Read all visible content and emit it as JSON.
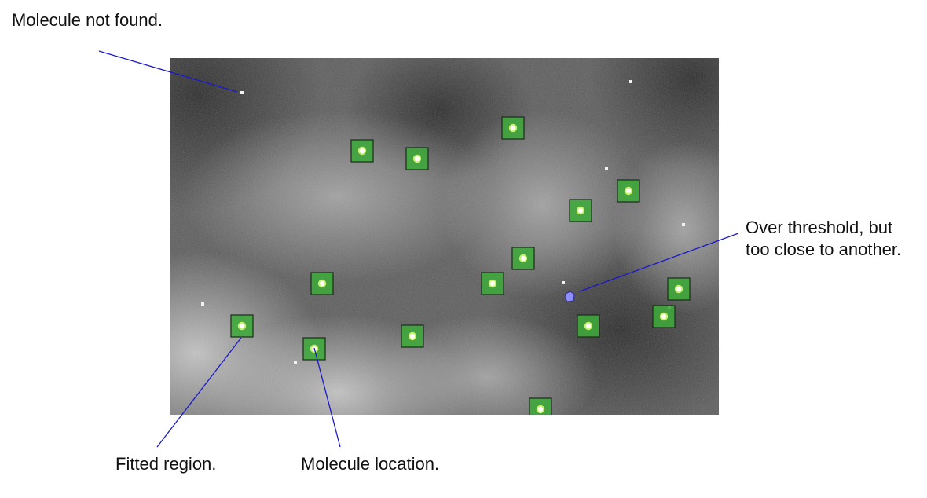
{
  "annotations": {
    "molecule_not_found": "Molecule not found.",
    "over_threshold_line1": "Over threshold, but",
    "over_threshold_line2": "too close to another.",
    "fitted_region": "Fitted region.",
    "molecule_location": "Molecule location."
  },
  "colors": {
    "leader_line": "#1a1acc",
    "fitted_region_fill": "#3ea83a",
    "fitted_region_border": "#1c2a1c",
    "molecule_marker": "#c6f06a",
    "rejected_marker": "#8f8fff",
    "image_dark": "#2c2c2c",
    "image_light": "#d8d8d8"
  }
}
